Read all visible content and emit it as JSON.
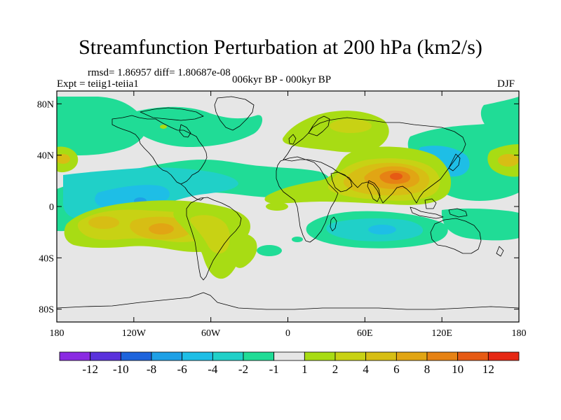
{
  "header": {
    "title": "Streamfunction Perturbation at 200 hPa (km2/s)",
    "stats": "rmsd= 1.86957 diff= 1.80687e-08",
    "experiment": "Expt = teiig1-teiia1",
    "period": "006kyr BP - 000kyr BP",
    "season": "DJF"
  },
  "map": {
    "projection": "cylindrical equidistant",
    "lon_range": [
      -180,
      180
    ],
    "lat_range": [
      -90,
      90
    ],
    "background_color": "#e6e6e6",
    "lat_ticks": [
      {
        "value": 80,
        "label": "80N"
      },
      {
        "value": 40,
        "label": "40N"
      },
      {
        "value": 0,
        "label": "0"
      },
      {
        "value": -40,
        "label": "40S"
      },
      {
        "value": -80,
        "label": "80S"
      }
    ],
    "lon_ticks": [
      {
        "value": -180,
        "label": "180"
      },
      {
        "value": -120,
        "label": "120W"
      },
      {
        "value": -60,
        "label": "60W"
      },
      {
        "value": 0,
        "label": "0"
      },
      {
        "value": 60,
        "label": "60E"
      },
      {
        "value": 120,
        "label": "120E"
      },
      {
        "value": 180,
        "label": "180"
      }
    ]
  },
  "colorbar": {
    "colors": [
      "#8a2be2",
      "#5a32dc",
      "#1e64dc",
      "#1ea0e6",
      "#1ebee6",
      "#20d0c8",
      "#20dc96",
      "#e6e6e6",
      "#a8dc14",
      "#c8d214",
      "#d7be14",
      "#e1a514",
      "#e68214",
      "#e65a14",
      "#e62814"
    ],
    "labels": [
      "-12",
      "-10",
      "-8",
      "-6",
      "-4",
      "-2",
      "-1",
      "1",
      "2",
      "4",
      "6",
      "8",
      "10",
      "12"
    ]
  },
  "chart_data": {
    "type": "heatmap",
    "title": "Streamfunction Perturbation at 200 hPa (km2/s)",
    "levels": [
      -12,
      -10,
      -8,
      -6,
      -4,
      -2,
      -1,
      1,
      2,
      4,
      6,
      8,
      10,
      12
    ],
    "xlim": [
      -180,
      180
    ],
    "ylim": [
      -90,
      90
    ],
    "anomalies": [
      {
        "name": "subtropical-asia-high",
        "lon": 85,
        "lat": 25,
        "peak": 9
      },
      {
        "name": "north-atlantic-europe-high",
        "lon": 30,
        "lat": 60,
        "peak": 2.5
      },
      {
        "name": "south-pacific-high",
        "lon": -100,
        "lat": -15,
        "peak": 5
      },
      {
        "name": "south-pacific-west-high",
        "lon": -150,
        "lat": -10,
        "peak": 4
      },
      {
        "name": "south-america-high",
        "lon": -60,
        "lat": -20,
        "peak": 3.5
      },
      {
        "name": "north-pacific-east-high",
        "lon": 160,
        "lat": 38,
        "peak": 5
      },
      {
        "name": "dateline-north-high",
        "lon": -175,
        "lat": 38,
        "peak": 4
      },
      {
        "name": "tropical-pacific-low",
        "lon": -115,
        "lat": 5,
        "peak": -5
      },
      {
        "name": "tropical-atlantic-low",
        "lon": -20,
        "lat": 15,
        "peak": -2.5
      },
      {
        "name": "north-pacific-low",
        "lon": 150,
        "lat": 25,
        "peak": -3
      },
      {
        "name": "indian-ocean-low",
        "lon": 70,
        "lat": -20,
        "peak": -5
      },
      {
        "name": "arctic-low",
        "lon": -70,
        "lat": 75,
        "peak": -2
      },
      {
        "name": "arctic-east-low",
        "lon": 170,
        "lat": 70,
        "peak": -2.5
      }
    ]
  }
}
